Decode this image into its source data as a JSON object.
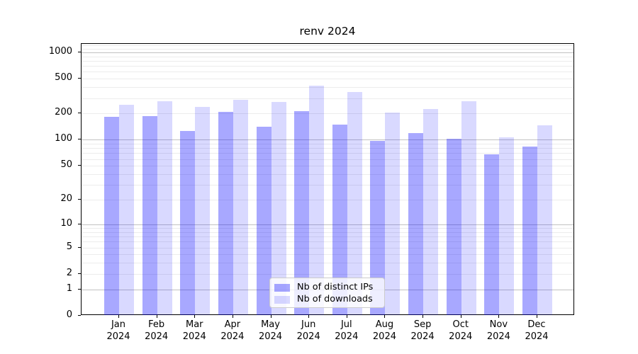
{
  "title": "renv 2024",
  "chart_data": {
    "type": "bar",
    "title": "renv 2024",
    "categories": [
      "Jan",
      "Feb",
      "Mar",
      "Apr",
      "May",
      "Jun",
      "Jul",
      "Aug",
      "Sep",
      "Oct",
      "Nov",
      "Dec"
    ],
    "xlabel_year": "2024",
    "series": [
      {
        "name": "Nb of distinct IPs",
        "color": "rgba(0,0,255,0.34)",
        "values": [
          185,
          186,
          126,
          210,
          141,
          215,
          150,
          97,
          120,
          103,
          68,
          84
        ]
      },
      {
        "name": "Nb of downloads",
        "color": "rgba(0,0,255,0.15)",
        "values": [
          253,
          275,
          238,
          286,
          273,
          419,
          351,
          204,
          224,
          277,
          106,
          148
        ]
      }
    ],
    "yscale": "log1p",
    "ylim": [
      0,
      1249
    ],
    "yticks": [
      0,
      1,
      2,
      5,
      10,
      20,
      50,
      100,
      200,
      500,
      1000
    ],
    "grid_major": [
      1,
      10,
      100,
      1000
    ],
    "grid_minor": [
      2,
      3,
      4,
      5,
      6,
      7,
      8,
      9,
      20,
      30,
      40,
      50,
      60,
      70,
      80,
      90,
      200,
      300,
      400,
      500,
      600,
      700,
      800,
      900,
      1100,
      1200
    ],
    "legend_position": "lower center",
    "bar_width_ratio": 0.4
  },
  "legend": {
    "items": [
      {
        "label": "Nb of distinct IPs"
      },
      {
        "label": "Nb of downloads"
      }
    ]
  }
}
